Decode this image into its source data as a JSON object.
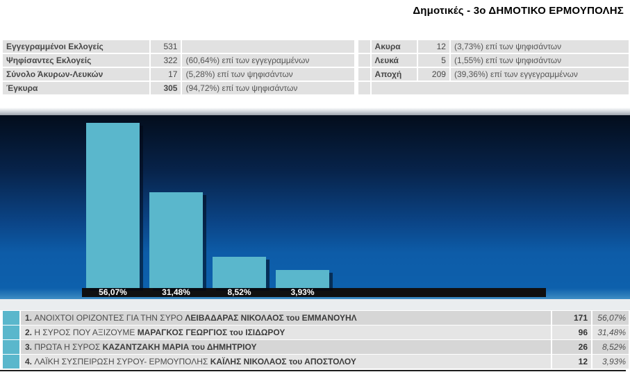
{
  "page": {
    "title": "Δημοτικές - 3ο ΔΗΜΟΤΙΚΟ ΕΡΜΟΥΠΟΛΗΣ"
  },
  "stats_left": {
    "rows": [
      {
        "label": "Εγγεγραμμένοι Εκλογείς",
        "value": "531",
        "note": "",
        "value_bold": false
      },
      {
        "label": "Ψηφίσαντες Εκλογείς",
        "value": "322",
        "note": "(60,64%) επί των εγγεγραμμένων",
        "value_bold": false
      },
      {
        "label": "Σύνολο Άκυρων-Λευκών",
        "value": "17",
        "note": "(5,28%) επί των ψηφισάντων",
        "value_bold": false
      },
      {
        "label": "Έγκυρα",
        "value": "305",
        "note": "(94,72%) επί των ψηφισάντων",
        "value_bold": true
      }
    ]
  },
  "stats_right": {
    "rows": [
      {
        "label": "Ακυρα",
        "value": "12",
        "note": "(3,73%) επί των ψηφισάντων"
      },
      {
        "label": "Λευκά",
        "value": "5",
        "note": "(1,55%) επί των ψηφισάντων"
      },
      {
        "label": "Αποχή",
        "value": "209",
        "note": "(39,36%) επί των εγγεγραμμένων"
      }
    ],
    "empty_last_row": true
  },
  "chart_data": {
    "type": "bar",
    "title": "",
    "xlabel": "",
    "ylabel": "",
    "legend": false,
    "categories": [
      "ΑΝΟΙΧΤΟΙ ΟΡΙΖΟΝΤΕΣ ΓΙΑ ΤΗΝ ΣΥΡΟ",
      "Η ΣΥΡΟΣ ΠΟΥ ΑΞΙΖΟΥΜΕ",
      "ΠΡΩΤΑ Η ΣΥΡΟΣ",
      "ΛΑΪΚΗ ΣΥΣΠΕΙΡΩΣΗ ΣΥΡΟΥ- ΕΡΜΟΥΠΟΛΗΣ"
    ],
    "values": [
      56.07,
      31.48,
      8.52,
      3.93
    ],
    "value_labels": [
      "56,07%",
      "31,48%",
      "8,52%",
      "3,93%"
    ],
    "votes": [
      171,
      96,
      26,
      12
    ],
    "bar_color": "#5ab7cc",
    "background": "blue-gradient",
    "ylim": [
      0,
      60
    ]
  },
  "results": {
    "swatch_color": "#5ab7cc",
    "rows": [
      {
        "rank": "1.",
        "party": "ΑΝΟΙΧΤΟΙ ΟΡΙΖΟΝΤΕΣ ΓΙΑ ΤΗΝ ΣΥΡΟ",
        "candidate": "ΛΕΙΒΑΔΑΡΑΣ ΝΙΚΟΛΑΟΣ του ΕΜΜΑΝΟΥΗΛ",
        "votes": "171",
        "pct": "56,07%"
      },
      {
        "rank": "2.",
        "party": "Η ΣΥΡΟΣ ΠΟΥ ΑΞΙΖΟΥΜΕ",
        "candidate": "ΜΑΡΑΓΚΟΣ ΓΕΩΡΓΙΟΣ του ΙΣΙΔΩΡΟΥ",
        "votes": "96",
        "pct": "31,48%"
      },
      {
        "rank": "3.",
        "party": "ΠΡΩΤΑ Η ΣΥΡΟΣ",
        "candidate": "ΚΑΖΑΝΤΖΑΚΗ ΜΑΡΙΑ του ΔΗΜΗΤΡΙΟΥ",
        "votes": "26",
        "pct": "8,52%"
      },
      {
        "rank": "4.",
        "party": "ΛΑΪΚΗ ΣΥΣΠΕΙΡΩΣΗ ΣΥΡΟΥ- ΕΡΜΟΥΠΟΛΗΣ",
        "candidate": "ΚΑΪΛΗΣ ΝΙΚΟΛΑΟΣ του ΑΠΟΣΤΟΛΟΥ",
        "votes": "12",
        "pct": "3,93%"
      }
    ]
  }
}
